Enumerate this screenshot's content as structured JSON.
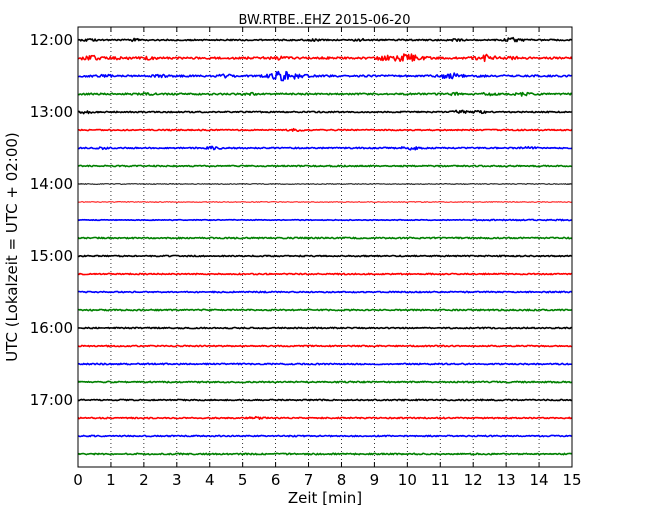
{
  "chart_data": {
    "type": "line",
    "title": "BW.RTBE..EHZ 2015-06-20",
    "xlabel": "Zeit  [min]",
    "ylabel": "UTC (Lokalzeit = UTC + 02:00)",
    "xlim": [
      0,
      15
    ],
    "xticks": [
      0,
      1,
      2,
      3,
      4,
      5,
      6,
      7,
      8,
      9,
      10,
      11,
      12,
      13,
      14,
      15
    ],
    "yticks": [
      "12:00",
      "13:00",
      "14:00",
      "15:00",
      "16:00",
      "17:00"
    ],
    "grid": {
      "x": "dotted",
      "y": "none"
    },
    "trace_interval_min": 15,
    "colors": [
      "#000000",
      "#ff0000",
      "#0000ff",
      "#008000"
    ],
    "traces": [
      {
        "time": "12:00",
        "color": "#000000",
        "level": 0.35,
        "events": [
          {
            "t": 0.35,
            "amp": 1.2
          },
          {
            "t": 1.7,
            "amp": 1.0
          },
          {
            "t": 7.2,
            "amp": 0.9
          },
          {
            "t": 8.6,
            "amp": 0.8
          },
          {
            "t": 11.5,
            "amp": 0.8
          },
          {
            "t": 13.25,
            "amp": 2.2
          }
        ]
      },
      {
        "time": "12:15",
        "color": "#ff0000",
        "level": 0.7,
        "events": [
          {
            "t": 0.4,
            "amp": 2.5
          },
          {
            "t": 1.3,
            "amp": 1.5
          },
          {
            "t": 2.2,
            "amp": 1.0
          },
          {
            "t": 6.0,
            "amp": 1.8
          },
          {
            "t": 9.3,
            "amp": 2.0
          },
          {
            "t": 9.9,
            "amp": 3.5
          },
          {
            "t": 10.3,
            "amp": 2.0
          },
          {
            "t": 12.4,
            "amp": 3.0
          },
          {
            "t": 13.3,
            "amp": 1.2
          }
        ]
      },
      {
        "time": "12:30",
        "color": "#0000ff",
        "level": 0.6,
        "events": [
          {
            "t": 0.8,
            "amp": 1.0
          },
          {
            "t": 2.5,
            "amp": 1.0
          },
          {
            "t": 4.5,
            "amp": 1.2
          },
          {
            "t": 6.2,
            "amp": 4.5
          },
          {
            "t": 6.75,
            "amp": 1.5
          },
          {
            "t": 11.3,
            "amp": 2.8
          },
          {
            "t": 12.0,
            "amp": 1.0
          }
        ]
      },
      {
        "time": "12:45",
        "color": "#008000",
        "level": 0.5,
        "events": [
          {
            "t": 2.1,
            "amp": 0.8
          },
          {
            "t": 5.2,
            "amp": 0.8
          },
          {
            "t": 11.4,
            "amp": 1.0
          },
          {
            "t": 12.5,
            "amp": 1.2
          },
          {
            "t": 13.5,
            "amp": 1.4
          }
        ]
      },
      {
        "time": "13:00",
        "color": "#000000",
        "level": 0.3,
        "events": [
          {
            "t": 0.25,
            "amp": 1.2
          },
          {
            "t": 11.6,
            "amp": 1.5
          },
          {
            "t": 12.2,
            "amp": 1.2
          }
        ]
      },
      {
        "time": "13:15",
        "color": "#ff0000",
        "level": 0.25,
        "events": [
          {
            "t": 6.6,
            "amp": 0.9
          }
        ]
      },
      {
        "time": "13:30",
        "color": "#0000ff",
        "level": 0.35,
        "events": [
          {
            "t": 0.8,
            "amp": 0.9
          },
          {
            "t": 4.1,
            "amp": 1.3
          },
          {
            "t": 10.1,
            "amp": 1.6
          },
          {
            "t": 13.7,
            "amp": 0.8
          }
        ]
      },
      {
        "time": "13:45",
        "color": "#008000",
        "level": 0.3,
        "events": []
      },
      {
        "time": "14:00",
        "color": "#000000",
        "level": 0.0,
        "events": []
      },
      {
        "time": "14:15",
        "color": "#ff0000",
        "level": 0.0,
        "events": []
      },
      {
        "time": "14:30",
        "color": "#0000ff",
        "level": 0.0,
        "events": [],
        "signal_start_min": 11.7,
        "signal_level": 0.3
      },
      {
        "time": "14:45",
        "color": "#008000",
        "level": 0.35,
        "events": []
      },
      {
        "time": "15:00",
        "color": "#000000",
        "level": 0.3,
        "events": []
      },
      {
        "time": "15:15",
        "color": "#ff0000",
        "level": 0.3,
        "events": []
      },
      {
        "time": "15:30",
        "color": "#0000ff",
        "level": 0.3,
        "events": []
      },
      {
        "time": "15:45",
        "color": "#008000",
        "level": 0.35,
        "events": []
      },
      {
        "time": "16:00",
        "color": "#000000",
        "level": 0.3,
        "events": []
      },
      {
        "time": "16:15",
        "color": "#ff0000",
        "level": 0.3,
        "events": []
      },
      {
        "time": "16:30",
        "color": "#0000ff",
        "level": 0.35,
        "events": []
      },
      {
        "time": "16:45",
        "color": "#008000",
        "level": 0.35,
        "events": []
      },
      {
        "time": "17:00",
        "color": "#000000",
        "level": 0.3,
        "events": []
      },
      {
        "time": "17:15",
        "color": "#ff0000",
        "level": 0.3,
        "events": [
          {
            "t": 5.4,
            "amp": 1.0
          }
        ]
      },
      {
        "time": "17:30",
        "color": "#0000ff",
        "level": 0.3,
        "events": []
      },
      {
        "time": "17:45",
        "color": "#008000",
        "level": 0.35,
        "events": []
      }
    ]
  }
}
